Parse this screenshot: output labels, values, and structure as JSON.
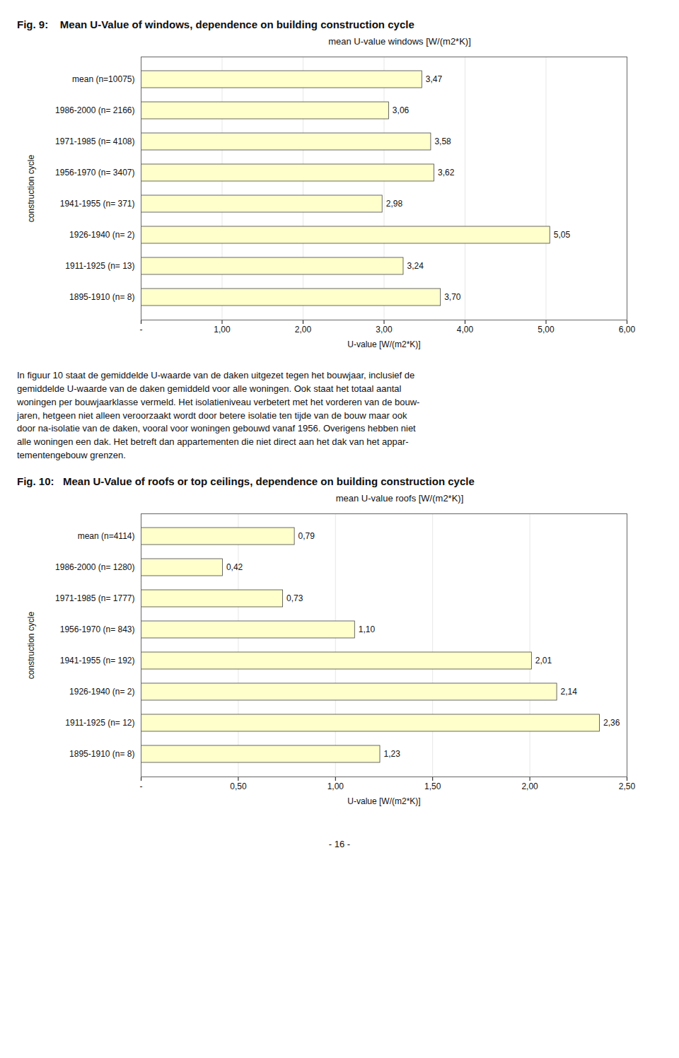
{
  "chart_data": [
    {
      "type": "bar",
      "orientation": "horizontal",
      "title": "Fig. 9:    Mean U-Value of windows, dependence on building construction cycle",
      "subtitle": "mean U-value windows [W/(m2*K)]",
      "xlabel": "U-value [W/(m2*K)]",
      "ylabel": "construction cycle",
      "categories": [
        "mean (n=10075)",
        "1986-2000 (n= 2166)",
        "1971-1985 (n= 4108)",
        "1956-1970 (n= 3407)",
        "1941-1955 (n= 371)",
        "1926-1940 (n= 2)",
        "1911-1925 (n= 13)",
        "1895-1910 (n= 8)"
      ],
      "values": [
        3.47,
        3.06,
        3.58,
        3.62,
        2.98,
        5.05,
        3.24,
        3.7
      ],
      "value_labels": [
        "3,47",
        "3,06",
        "3,58",
        "3,62",
        "2,98",
        "5,05",
        "3,24",
        "3,70"
      ],
      "data_labels": true,
      "color": "#FFFFCC",
      "xlim": [
        0,
        6.0
      ],
      "xticks": [
        {
          "value": 0,
          "label": "-"
        },
        {
          "value": 1.0,
          "label": "1,00"
        },
        {
          "value": 2.0,
          "label": "2,00"
        },
        {
          "value": 3.0,
          "label": "3,00"
        },
        {
          "value": 4.0,
          "label": "4,00"
        },
        {
          "value": 5.0,
          "label": "5,00"
        },
        {
          "value": 6.0,
          "label": "6,00"
        }
      ],
      "grid": true
    },
    {
      "type": "bar",
      "orientation": "horizontal",
      "title": "Fig. 10:   Mean U-Value of roofs or top ceilings, dependence on building construction cycle",
      "subtitle": "mean U-value roofs [W/(m2*K)]",
      "xlabel": "U-value [W/(m2*K)]",
      "ylabel": "construction cycle",
      "categories": [
        "mean (n=4114)",
        "1986-2000 (n= 1280)",
        "1971-1985 (n= 1777)",
        "1956-1970 (n= 843)",
        "1941-1955 (n= 192)",
        "1926-1940 (n= 2)",
        "1911-1925 (n= 12)",
        "1895-1910 (n= 8)"
      ],
      "values": [
        0.79,
        0.42,
        0.73,
        1.1,
        2.01,
        2.14,
        2.36,
        1.23
      ],
      "value_labels": [
        "0,79",
        "0,42",
        "0,73",
        "1,10",
        "2,01",
        "2,14",
        "2,36",
        "1,23"
      ],
      "data_labels": true,
      "color": "#FFFFCC",
      "xlim": [
        0,
        2.5
      ],
      "xticks": [
        {
          "value": 0,
          "label": "-"
        },
        {
          "value": 0.5,
          "label": "0,50"
        },
        {
          "value": 1.0,
          "label": "1,00"
        },
        {
          "value": 1.5,
          "label": "1,50"
        },
        {
          "value": 2.0,
          "label": "2,00"
        },
        {
          "value": 2.5,
          "label": "2,50"
        }
      ],
      "grid": true
    }
  ],
  "paragraph": "In figuur 10 staat de gemiddelde U-waarde van de daken uitgezet tegen het bouwjaar, inclusief de\ngemiddelde U-waarde van de daken gemiddeld voor alle woningen. Ook staat het totaal aantal\nwoningen per bouwjaarklasse vermeld. Het isolatieniveau verbetert met het vorderen van de bouw-\njaren, hetgeen niet alleen veroorzaakt wordt door betere isolatie ten tijde van de bouw maar ook\ndoor na-isolatie van de daken, vooral voor woningen gebouwd vanaf 1956. Overigens hebben niet\nalle woningen een dak. Het betreft dan appartementen die niet direct aan het dak van het appar-\ntementengebouw grenzen.",
  "page_number": "- 16 -"
}
